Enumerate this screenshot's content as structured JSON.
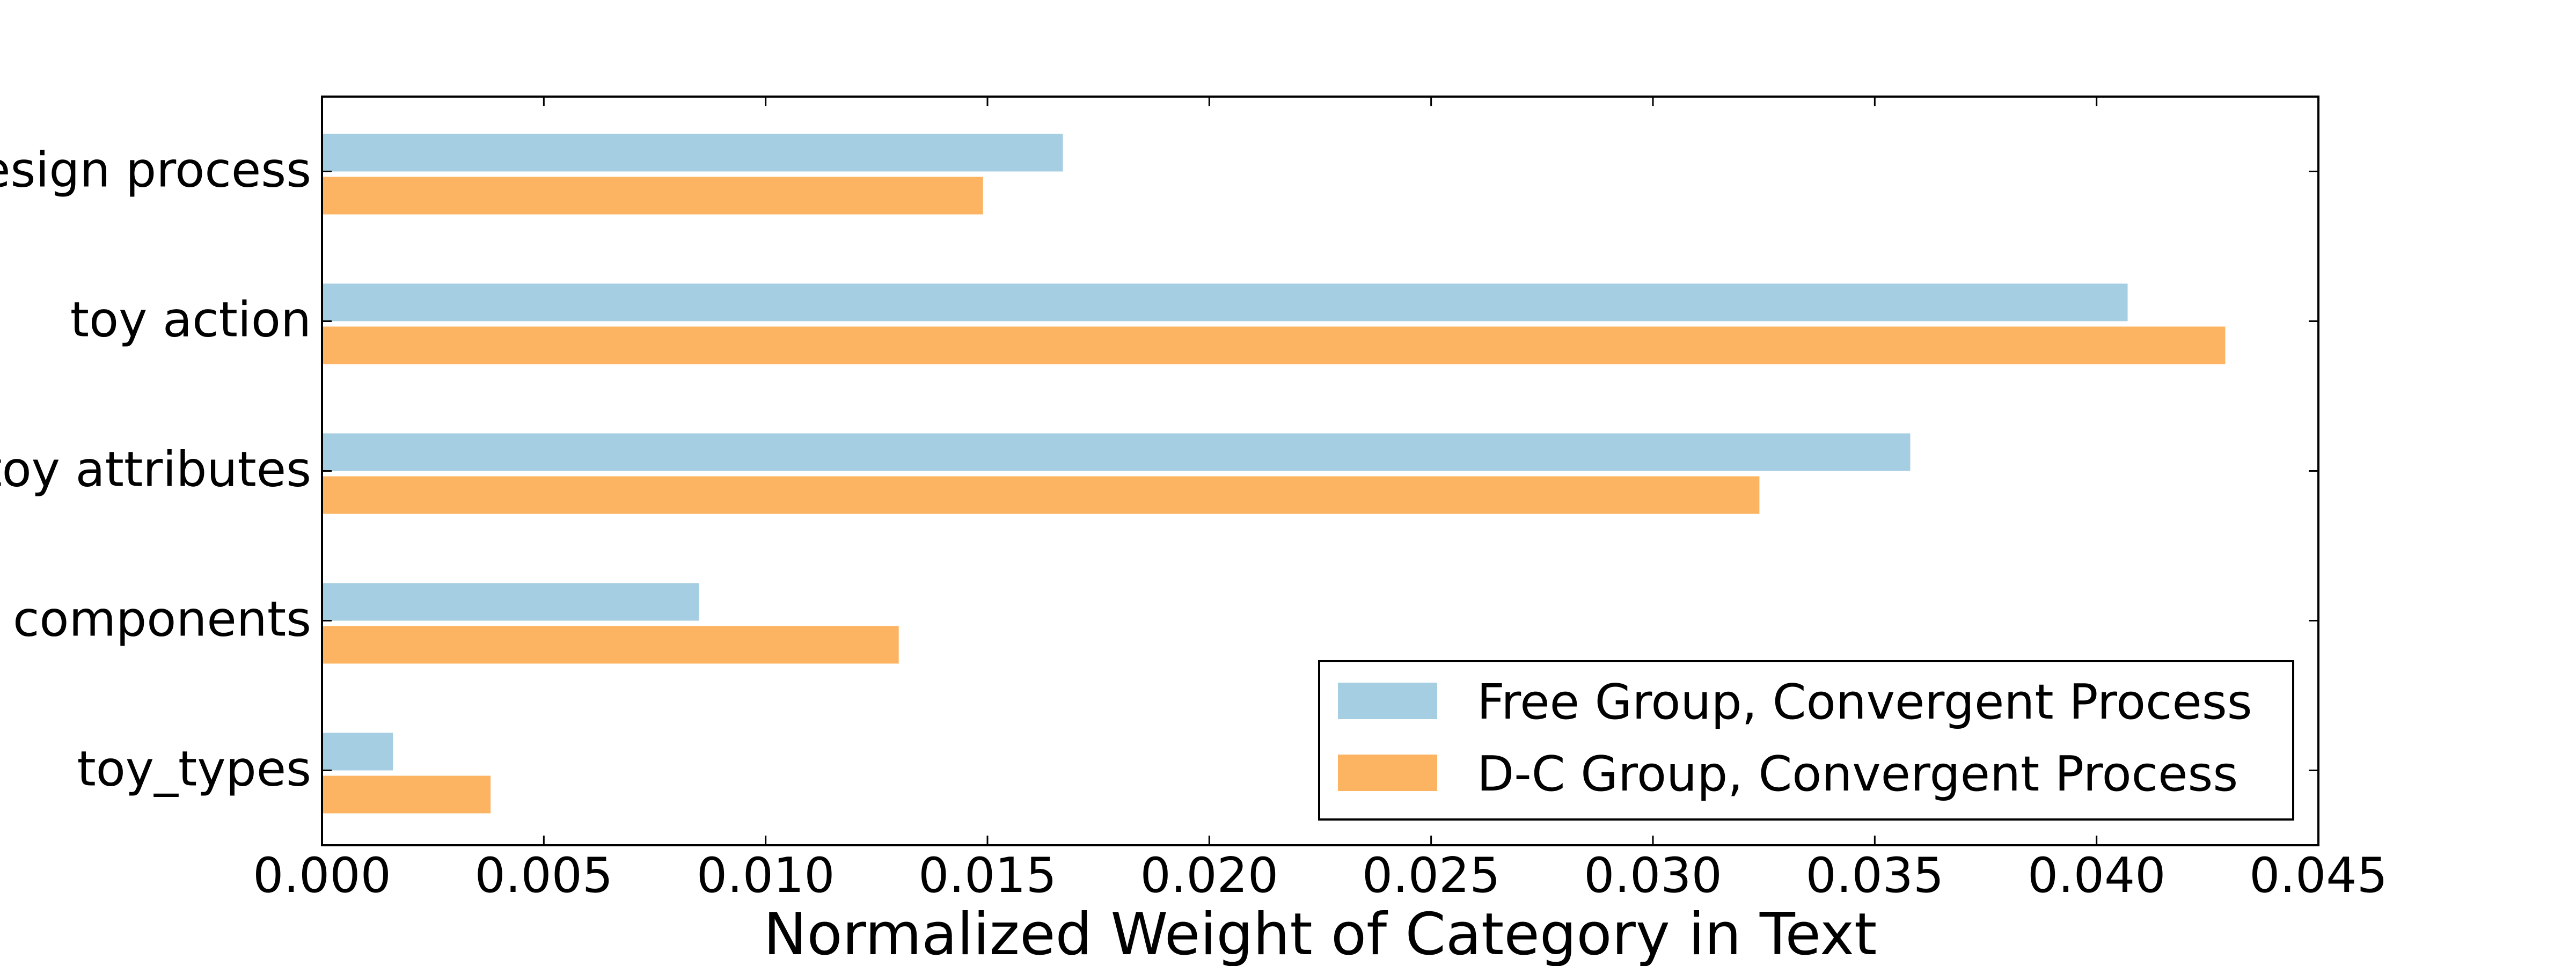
{
  "chart_data": {
    "type": "bar",
    "orientation": "horizontal",
    "categories": [
      "design process",
      "toy action",
      "toy attributes",
      "components",
      "toy_types"
    ],
    "series": [
      {
        "name": "Free Group, Convergent Process",
        "color": "#a6cee3",
        "values": [
          0.0167,
          0.0407,
          0.0358,
          0.0085,
          0.0016
        ]
      },
      {
        "name": "D-C Group, Convergent Process",
        "color": "#fdb462",
        "values": [
          0.0149,
          0.0429,
          0.0324,
          0.013,
          0.0038
        ]
      }
    ],
    "xlabel": "Normalized Weight of Category in Text",
    "ylabel": "",
    "xlim": [
      0,
      0.045
    ],
    "xticks": [
      "0.000",
      "0.005",
      "0.010",
      "0.015",
      "0.020",
      "0.025",
      "0.030",
      "0.035",
      "0.040",
      "0.045"
    ],
    "xtick_values": [
      0,
      0.005,
      0.01,
      0.015,
      0.02,
      0.025,
      0.03,
      0.035,
      0.04,
      0.045
    ],
    "grid": false,
    "legend_position": "bottom-right"
  }
}
